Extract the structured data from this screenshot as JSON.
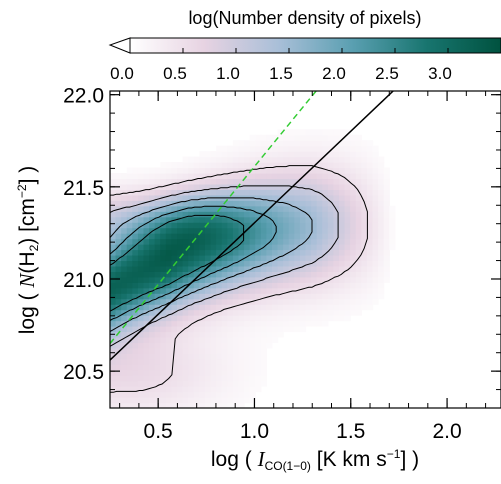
{
  "chart_data": {
    "type": "heatmap",
    "title": "",
    "colorbar": {
      "title": "log(Number density of pixels)",
      "tick_labels": [
        "0.0",
        "0.5",
        "1.0",
        "1.5",
        "2.0",
        "2.5",
        "3.0"
      ],
      "ticks": [
        0.0,
        0.5,
        1.0,
        1.5,
        2.0,
        2.5,
        3.0
      ],
      "range": [
        0.0,
        3.5
      ],
      "colors": [
        "#ffffff",
        "#e7d3e2",
        "#a9bfd8",
        "#5a9fb1",
        "#18756f",
        "#00523f"
      ]
    },
    "xlabel": {
      "prefix": "log ( ",
      "symbol": "I",
      "subscript": "CO(1−0)",
      "unit_prefix": " [K km s",
      "unit_sup": "−1",
      "suffix": "] )"
    },
    "ylabel": {
      "prefix": "log ( ",
      "symbol": "N",
      "mid": "(H",
      "subscript": "2",
      "unit_prefix": ") [cm",
      "unit_sup": "−2",
      "suffix": "] )"
    },
    "xlim": [
      0.25,
      2.28
    ],
    "ylim": [
      20.3,
      22.02
    ],
    "x_ticks": [
      0.5,
      1.0,
      1.5,
      2.0
    ],
    "x_tick_labels": [
      "0.5",
      "1.0",
      "1.5",
      "2.0"
    ],
    "y_ticks": [
      20.5,
      21.0,
      21.5,
      22.0
    ],
    "y_tick_labels": [
      "20.5",
      "21.0",
      "21.5",
      "22.0"
    ],
    "x_minor_step": 0.1,
    "y_minor_step": 0.1,
    "density_ridge": [
      {
        "x": 0.25,
        "y": 20.95
      },
      {
        "x": 0.5,
        "y": 21.12
      },
      {
        "x": 0.75,
        "y": 21.2
      },
      {
        "x": 1.0,
        "y": 21.25
      },
      {
        "x": 1.25,
        "y": 21.22
      }
    ],
    "contour_levels": [
      0.5,
      1.0,
      1.5,
      2.0,
      2.5
    ],
    "lines": [
      {
        "label": "black solid",
        "color": "#000000",
        "dash": "",
        "x": [
          0.25,
          1.72
        ],
        "y": [
          20.56,
          22.02
        ]
      },
      {
        "label": "green dashed",
        "color": "#33cc33",
        "dash": "6,4",
        "x": [
          0.25,
          1.32
        ],
        "y": [
          20.65,
          22.02
        ]
      }
    ]
  }
}
